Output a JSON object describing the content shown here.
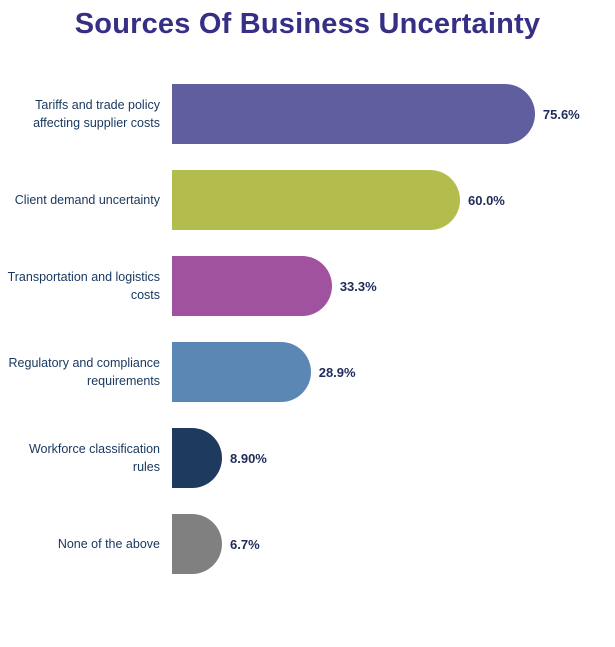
{
  "title": "Sources Of Business Uncertainty",
  "chart_data": {
    "type": "bar",
    "orientation": "horizontal",
    "title": "Sources Of Business Uncertainty",
    "xlabel": "",
    "ylabel": "",
    "xlim": [
      0,
      100
    ],
    "grid": false,
    "legend": false,
    "categories": [
      "Tariffs and trade policy affecting supplier costs",
      "Client demand uncertainty",
      "Transportation and logistics costs",
      "Regulatory and compliance requirements",
      "Workforce classification rules",
      "None of the above"
    ],
    "values": [
      75.6,
      60.0,
      33.3,
      28.9,
      8.9,
      6.7
    ],
    "value_labels": [
      "75.6%",
      "60.0%",
      "33.3%",
      "28.9%",
      "8.90%",
      "6.7%"
    ],
    "colors": [
      "#5f5fa0",
      "#b3bd4d",
      "#a0529e",
      "#5b87b5",
      "#1f3a5f",
      "#808080"
    ],
    "title_color": "#352f85",
    "label_color": "#17375e",
    "value_label_color": "#1f2b5b"
  }
}
